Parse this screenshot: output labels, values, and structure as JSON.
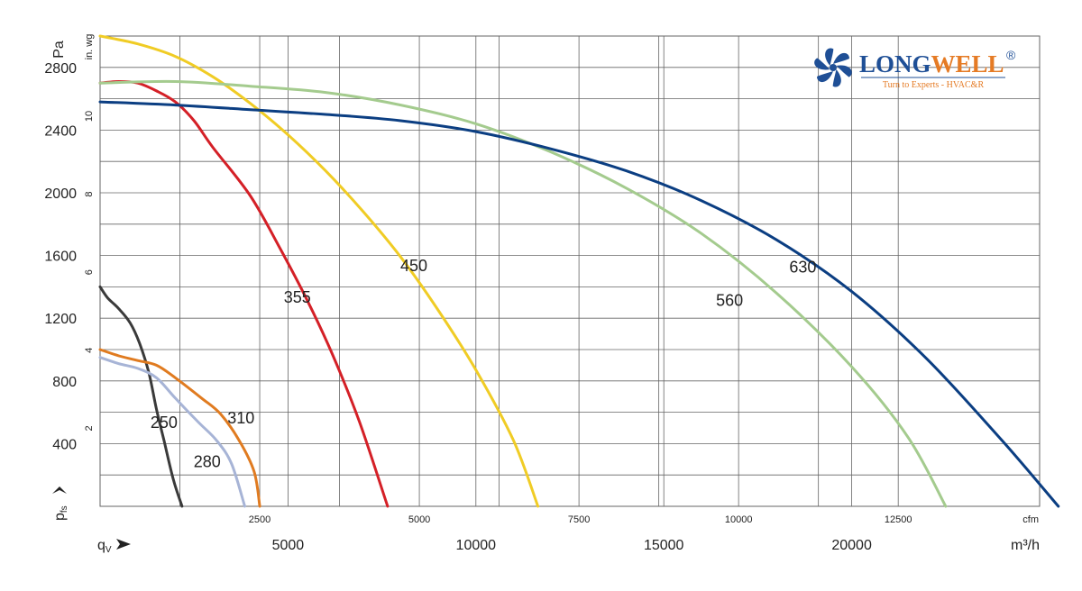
{
  "chart_data": {
    "type": "line",
    "y_unit_primary": "Pa",
    "y_unit_secondary": "in. wg",
    "y_axis_label": "p",
    "y_axis_label_sub": "fs",
    "x_axis_label": "q",
    "x_axis_label_sub": "V",
    "x_unit_primary": "m³/h",
    "x_unit_secondary": "cfm",
    "xlim_m3h": [
      0,
      25000
    ],
    "ylim_pa": [
      0,
      3000
    ],
    "grid": true,
    "y_ticks_pa": [
      "400",
      "800",
      "1200",
      "1600",
      "2000",
      "2400",
      "2800"
    ],
    "y_ticks_inwg": [
      "2",
      "4",
      "6",
      "8",
      "10"
    ],
    "x_ticks_m3h": [
      "5000",
      "10000",
      "15000",
      "20000"
    ],
    "x_ticks_cfm": [
      "2500",
      "5000",
      "7500",
      "10000",
      "12500"
    ],
    "series": [
      {
        "name": "250",
        "color": "#3a3a3a",
        "points": [
          [
            0,
            1400
          ],
          [
            200,
            1330
          ],
          [
            500,
            1260
          ],
          [
            800,
            1170
          ],
          [
            1050,
            1040
          ],
          [
            1300,
            850
          ],
          [
            1500,
            620
          ],
          [
            1700,
            420
          ],
          [
            1950,
            170
          ],
          [
            2180,
            0
          ]
        ]
      },
      {
        "name": "280",
        "color": "#a7b4d6",
        "points": [
          [
            0,
            950
          ],
          [
            500,
            910
          ],
          [
            1000,
            880
          ],
          [
            1500,
            820
          ],
          [
            2000,
            690
          ],
          [
            2600,
            540
          ],
          [
            3100,
            420
          ],
          [
            3500,
            270
          ],
          [
            3850,
            0
          ]
        ]
      },
      {
        "name": "310",
        "color": "#e07b20",
        "points": [
          [
            0,
            1000
          ],
          [
            500,
            960
          ],
          [
            1000,
            930
          ],
          [
            1500,
            900
          ],
          [
            2000,
            820
          ],
          [
            2700,
            690
          ],
          [
            3200,
            590
          ],
          [
            3700,
            420
          ],
          [
            4100,
            220
          ],
          [
            4250,
            0
          ]
        ]
      },
      {
        "name": "355",
        "color": "#d42027",
        "points": [
          [
            0,
            2700
          ],
          [
            500,
            2710
          ],
          [
            1000,
            2700
          ],
          [
            1500,
            2650
          ],
          [
            2000,
            2580
          ],
          [
            2500,
            2460
          ],
          [
            3000,
            2290
          ],
          [
            4000,
            1980
          ],
          [
            4800,
            1640
          ],
          [
            5500,
            1320
          ],
          [
            6200,
            960
          ],
          [
            6900,
            540
          ],
          [
            7650,
            0
          ]
        ]
      },
      {
        "name": "450",
        "color": "#f0cc25",
        "points": [
          [
            0,
            3000
          ],
          [
            1000,
            2950
          ],
          [
            2000,
            2870
          ],
          [
            3000,
            2740
          ],
          [
            4000,
            2570
          ],
          [
            5000,
            2370
          ],
          [
            6000,
            2140
          ],
          [
            7000,
            1880
          ],
          [
            8000,
            1590
          ],
          [
            9000,
            1250
          ],
          [
            10000,
            870
          ],
          [
            11000,
            420
          ],
          [
            11650,
            0
          ]
        ]
      },
      {
        "name": "560",
        "color": "#a4cb8e",
        "points": [
          [
            0,
            2700
          ],
          [
            2000,
            2710
          ],
          [
            4000,
            2680
          ],
          [
            6000,
            2640
          ],
          [
            8000,
            2560
          ],
          [
            10000,
            2440
          ],
          [
            12000,
            2260
          ],
          [
            14000,
            2030
          ],
          [
            16000,
            1740
          ],
          [
            18000,
            1360
          ],
          [
            20000,
            890
          ],
          [
            21500,
            440
          ],
          [
            22500,
            0
          ]
        ]
      },
      {
        "name": "630",
        "color": "#0b3e82",
        "points": [
          [
            0,
            2580
          ],
          [
            2000,
            2560
          ],
          [
            4000,
            2530
          ],
          [
            6000,
            2500
          ],
          [
            8000,
            2460
          ],
          [
            10000,
            2390
          ],
          [
            12000,
            2280
          ],
          [
            14000,
            2140
          ],
          [
            16000,
            1950
          ],
          [
            18000,
            1700
          ],
          [
            20000,
            1370
          ],
          [
            22000,
            940
          ],
          [
            24000,
            420
          ],
          [
            25500,
            0
          ]
        ]
      }
    ],
    "annotations": [
      {
        "text": "250",
        "x": 1700,
        "y": 500
      },
      {
        "text": "280",
        "x": 2850,
        "y": 250
      },
      {
        "text": "310",
        "x": 3750,
        "y": 530
      },
      {
        "text": "355",
        "x": 5250,
        "y": 1300
      },
      {
        "text": "450",
        "x": 8350,
        "y": 1500
      },
      {
        "text": "560",
        "x": 16750,
        "y": 1280
      },
      {
        "text": "630",
        "x": 18700,
        "y": 1490
      }
    ]
  },
  "logo": {
    "brand_part1": "LONG",
    "brand_part2": "WELL",
    "registered": "®",
    "tagline": "Turn to Experts - HVAC&R",
    "color_primary": "#1f4f96",
    "color_accent": "#e57b25"
  }
}
